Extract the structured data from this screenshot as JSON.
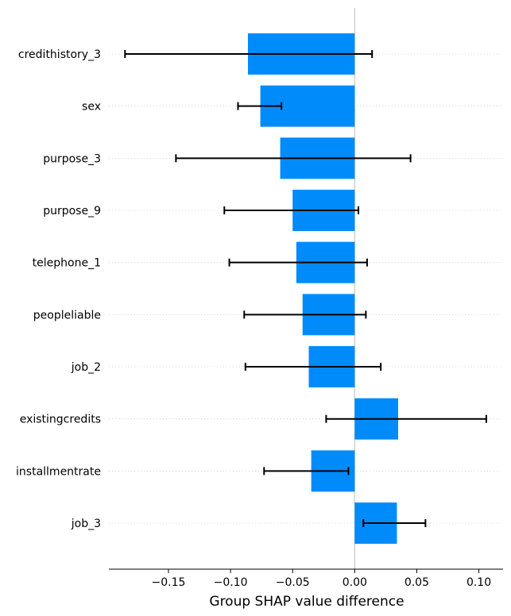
{
  "chart_data": {
    "type": "bar",
    "orientation": "horizontal",
    "title": "",
    "xlabel": "Group SHAP value difference",
    "ylabel": "",
    "xlim": [
      -0.198,
      0.1195
    ],
    "xticks": [
      -0.15,
      -0.1,
      -0.05,
      0.0,
      0.05,
      0.1
    ],
    "xtick_labels": [
      "−0.15",
      "−0.10",
      "−0.05",
      "0.00",
      "0.05",
      "0.10"
    ],
    "grid": false,
    "categories": [
      "credithistory_3",
      "sex",
      "purpose_3",
      "purpose_9",
      "telephone_1",
      "peopleliable",
      "job_2",
      "existingcredits",
      "installmentrate",
      "job_3"
    ],
    "values": [
      -0.086,
      -0.076,
      -0.06,
      -0.05,
      -0.047,
      -0.042,
      -0.037,
      0.035,
      -0.035,
      0.034
    ],
    "error_low": [
      -0.185,
      -0.094,
      -0.144,
      -0.105,
      -0.101,
      -0.089,
      -0.088,
      -0.023,
      -0.073,
      0.007
    ],
    "error_high": [
      0.014,
      -0.059,
      0.045,
      0.003,
      0.01,
      0.009,
      0.021,
      0.106,
      -0.005,
      0.057
    ],
    "bar_color": "#008bfb",
    "zero_line_color": "#bbbbbb",
    "error_bar_color": "#000000"
  }
}
